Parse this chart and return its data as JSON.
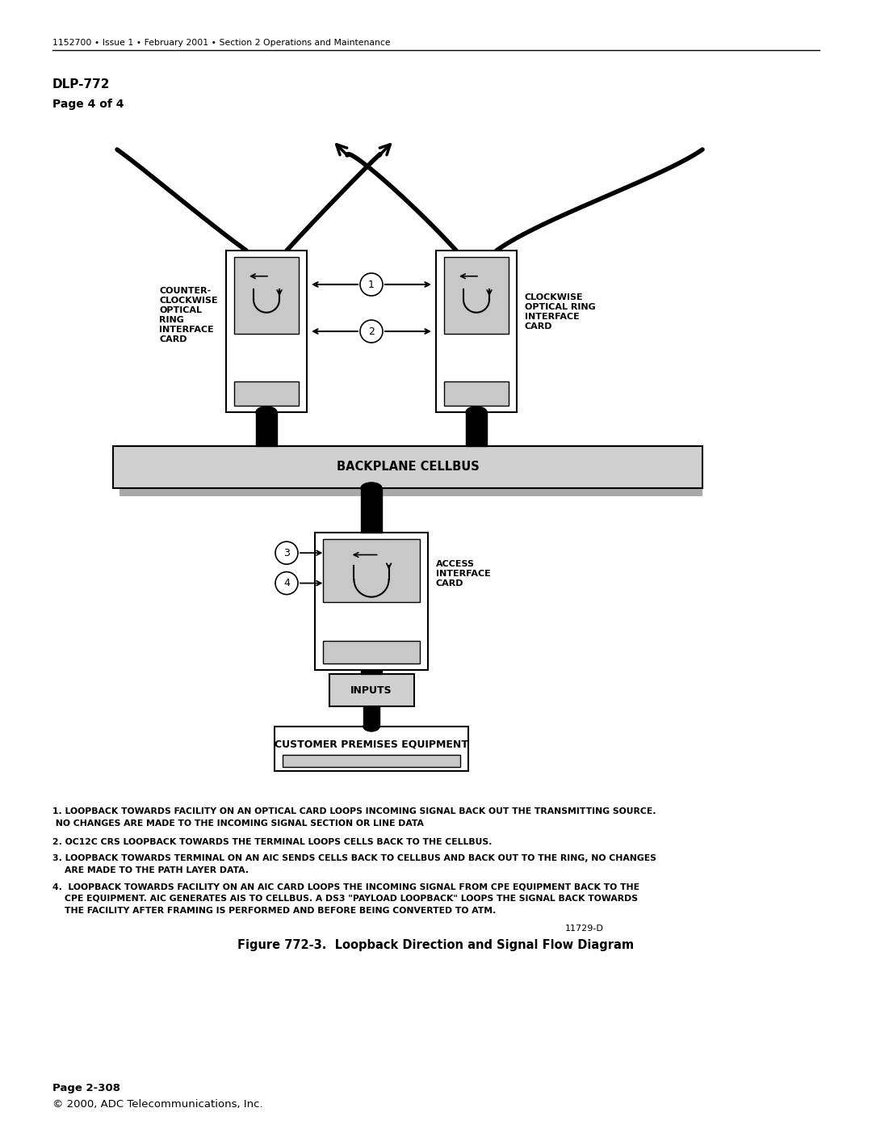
{
  "header_text": "1152700 • Issue 1 • February 2001 • Section 2 Operations and Maintenance",
  "title_bold": "DLP-772",
  "title_sub": "Page 4 of 4",
  "fig_caption": "Figure 772-3.  Loopback Direction and Signal Flow Diagram",
  "fig_id": "11729-D",
  "footer_bold": "Page 2-308",
  "footer_copy": "© 2000, ADC Telecommunications, Inc.",
  "label_ccw": "COUNTER-\nCLOCKWISE\nOPTICAL\nRING\nINTERFACE\nCARD",
  "label_cw": "CLOCKWISE\nOPTICAL RING\nINTERFACE\nCARD",
  "label_backplane": "BACKPLANE CELLBUS",
  "label_aic": "ACCESS\nINTERFACE\nCARD",
  "label_inputs": "INPUTS",
  "label_cpe": "CUSTOMER PREMISES EQUIPMENT",
  "note1_line1": "1. LOOPBACK TOWARDS FACILITY ON AN OPTICAL CARD LOOPS INCOMING SIGNAL BACK OUT THE TRANSMITTING SOURCE.",
  "note1_line2": " NO CHANGES ARE MADE TO THE INCOMING SIGNAL SECTION OR LINE DATA",
  "note2": "2. OC12C CRS LOOPBACK TOWARDS THE TERMINAL LOOPS CELLS BACK TO THE CELLBUS.",
  "note3_line1": "3. LOOPBACK TOWARDS TERMINAL ON AN AIC SENDS CELLS BACK TO CELLBUS AND BACK OUT TO THE RING, NO CHANGES",
  "note3_line2": "    ARE MADE TO THE PATH LAYER DATA.",
  "note4_line1": "4.  LOOPBACK TOWARDS FACILITY ON AN AIC CARD LOOPS THE INCOMING SIGNAL FROM CPE EQUIPMENT BACK TO THE",
  "note4_line2": "    CPE EQUIPMENT. AIC GENERATES AIS TO CELLBUS. A DS3 \"PAYLOAD LOOPBACK\" LOOPS THE SIGNAL BACK TOWARDS",
  "note4_line3": "    THE FACILITY AFTER FRAMING IS PERFORMED AND BEFORE BEING CONVERTED TO ATM.",
  "bg_color": "#ffffff",
  "card_fill": "#c8c8c8",
  "backplane_fill": "#d0d0d0",
  "shadow_fill": "#a8a8a8"
}
